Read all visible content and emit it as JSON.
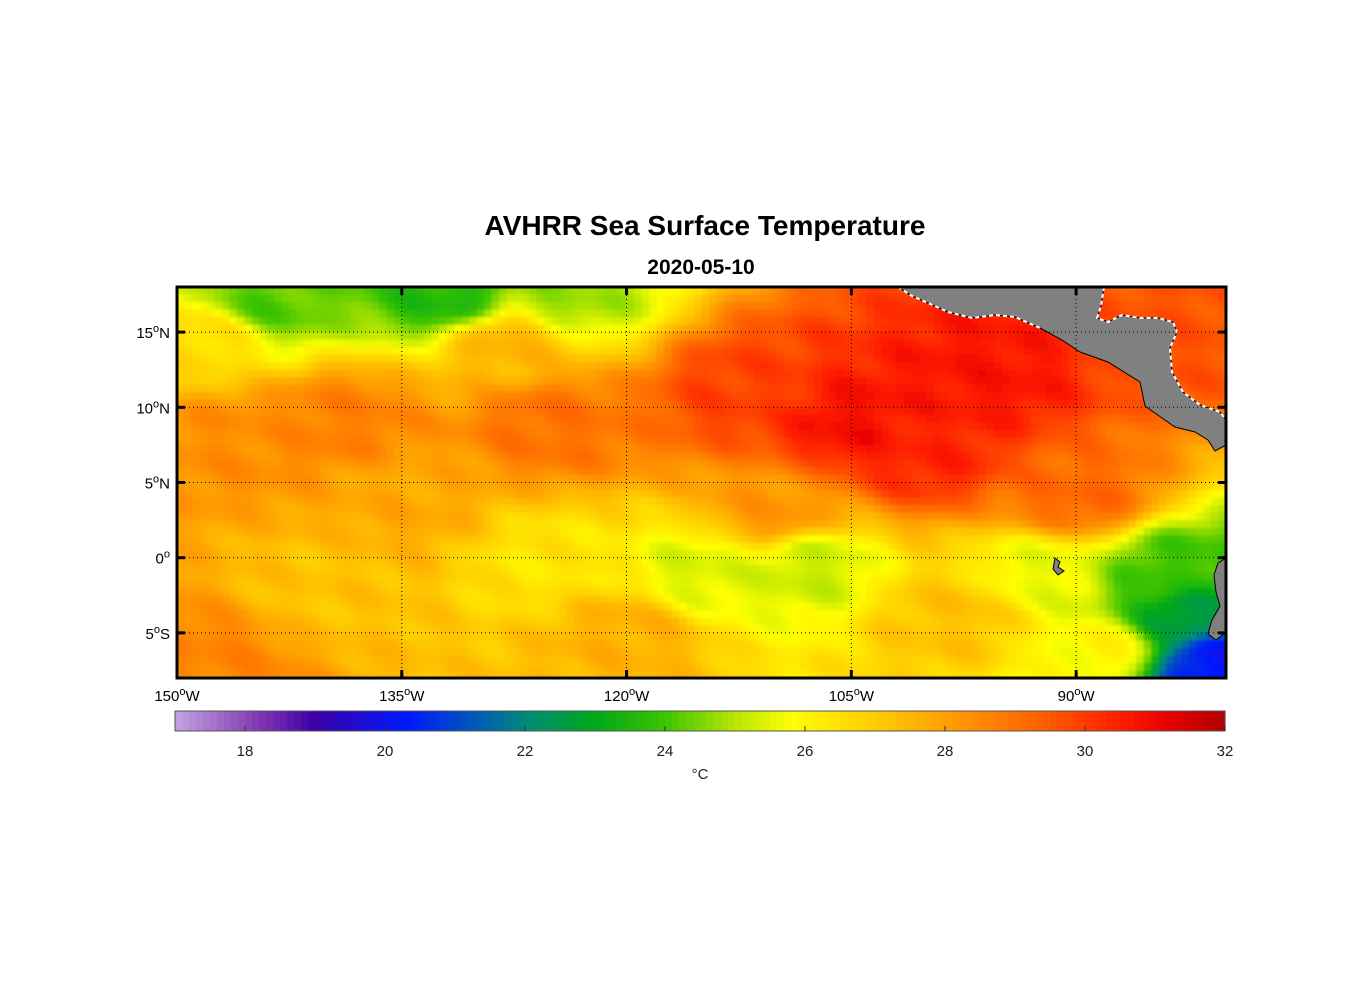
{
  "figure": {
    "title": "AVHRR Sea Surface Temperature",
    "subtitle": "2020-05-10"
  },
  "chart_data": {
    "type": "heatmap",
    "title": "AVHRR Sea Surface Temperature",
    "subtitle": "2020-05-10",
    "map": {
      "lon_range": [
        -150,
        -80
      ],
      "lat_range": [
        -8,
        18
      ],
      "grid": true,
      "land_color": "#808080",
      "coastline_color": "#ffffff",
      "lon_ticks": [
        {
          "value": -150,
          "deg": "150",
          "hem": "W"
        },
        {
          "value": -135,
          "deg": "135",
          "hem": "W"
        },
        {
          "value": -120,
          "deg": "120",
          "hem": "W"
        },
        {
          "value": -105,
          "deg": "105",
          "hem": "W"
        },
        {
          "value": -90,
          "deg": "90",
          "hem": "W"
        }
      ],
      "lat_ticks": [
        {
          "value": 15,
          "deg": "15",
          "hem": "N"
        },
        {
          "value": 10,
          "deg": "10",
          "hem": "N"
        },
        {
          "value": 5,
          "deg": "5",
          "hem": "N"
        },
        {
          "value": 0,
          "deg": "0",
          "hem": ""
        },
        {
          "value": -5,
          "deg": "5",
          "hem": "S"
        }
      ]
    },
    "colorbar": {
      "label": "°C",
      "range": [
        17,
        32
      ],
      "ticks": [
        18,
        20,
        22,
        24,
        26,
        28,
        30,
        32
      ],
      "tick_labels": [
        "18",
        "20",
        "22",
        "24",
        "26",
        "28",
        "30",
        "32"
      ],
      "palette": [
        {
          "t": 17.0,
          "color": "#c3a3e0"
        },
        {
          "t": 18.3,
          "color": "#7b2fb0"
        },
        {
          "t": 19.0,
          "color": "#3d00a8"
        },
        {
          "t": 20.3,
          "color": "#0018ff"
        },
        {
          "t": 21.4,
          "color": "#0060b0"
        },
        {
          "t": 22.0,
          "color": "#008a7a"
        },
        {
          "t": 23.0,
          "color": "#00a818"
        },
        {
          "t": 24.0,
          "color": "#3cc400"
        },
        {
          "t": 25.0,
          "color": "#b8e600"
        },
        {
          "t": 25.8,
          "color": "#ffff00"
        },
        {
          "t": 26.8,
          "color": "#ffd400"
        },
        {
          "t": 28.0,
          "color": "#ffa000"
        },
        {
          "t": 29.3,
          "color": "#ff6400"
        },
        {
          "t": 30.5,
          "color": "#ff1e00"
        },
        {
          "t": 31.2,
          "color": "#e80000"
        },
        {
          "t": 32.0,
          "color": "#b00000"
        }
      ]
    },
    "temperature_features": [
      {
        "lon": -105,
        "lat": 9,
        "sst": 30.8
      },
      {
        "lon": -96,
        "lat": 12,
        "sst": 30.7
      },
      {
        "lon": -100,
        "lat": 7,
        "sst": 30.4
      },
      {
        "lon": -112,
        "lat": 11,
        "sst": 29.9
      },
      {
        "lon": -125,
        "lat": 9,
        "sst": 29.0
      },
      {
        "lon": -139,
        "lat": 9,
        "sst": 28.7
      },
      {
        "lon": -146,
        "lat": 8,
        "sst": 28.4
      },
      {
        "lon": -83,
        "lat": 15,
        "sst": 29.6
      },
      {
        "lon": -90,
        "lat": 4,
        "sst": 29.2
      },
      {
        "lon": -144,
        "lat": 17,
        "sst": 24.2
      },
      {
        "lon": -132,
        "lat": 17.5,
        "sst": 23.6
      },
      {
        "lon": -124,
        "lat": 17.5,
        "sst": 24.8
      },
      {
        "lon": -148,
        "lat": 14.5,
        "sst": 26.6
      },
      {
        "lon": -128,
        "lat": 14,
        "sst": 27.5
      },
      {
        "lon": -115,
        "lat": -1,
        "sst": 25.4
      },
      {
        "lon": -108,
        "lat": -0.5,
        "sst": 25.2
      },
      {
        "lon": -125,
        "lat": -0.3,
        "sst": 26.4
      },
      {
        "lon": -140,
        "lat": -2,
        "sst": 27.2
      },
      {
        "lon": -148,
        "lat": -7,
        "sst": 28.6
      },
      {
        "lon": -84,
        "lat": -1,
        "sst": 24.0
      },
      {
        "lon": -83,
        "lat": -4,
        "sst": 22.6
      },
      {
        "lon": -81,
        "lat": -7,
        "sst": 20.2
      },
      {
        "lon": -88,
        "lat": -6,
        "sst": 26.0
      },
      {
        "lon": -92,
        "lat": -1,
        "sst": 25.6
      },
      {
        "lon": -98,
        "lat": -4,
        "sst": 27.2
      },
      {
        "lon": -120,
        "lat": -5,
        "sst": 27.6
      },
      {
        "lon": -135,
        "lat": 4,
        "sst": 27.8
      },
      {
        "lon": -110,
        "lat": 3,
        "sst": 28.2
      }
    ]
  }
}
